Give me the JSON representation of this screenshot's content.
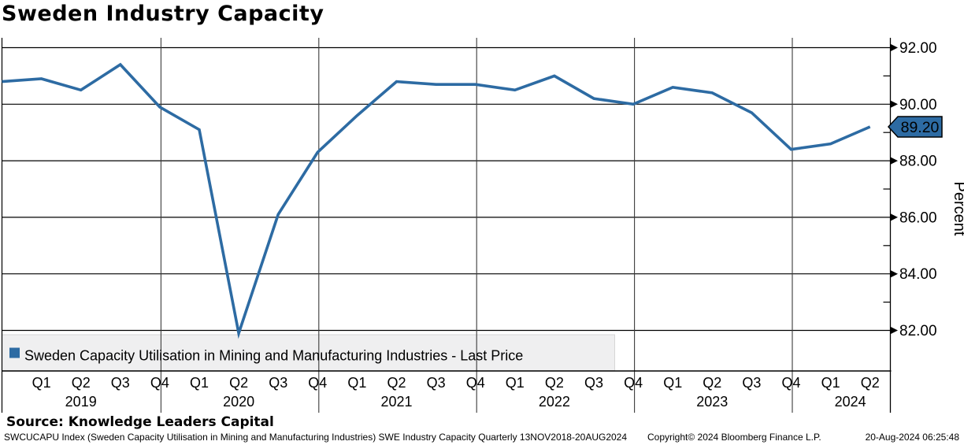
{
  "title": "Sweden Industry Capacity",
  "chart_data": {
    "type": "line",
    "x": [
      "2018-Q4",
      "2019-Q1",
      "2019-Q2",
      "2019-Q3",
      "2019-Q4",
      "2020-Q1",
      "2020-Q2",
      "2020-Q3",
      "2020-Q4",
      "2021-Q1",
      "2021-Q2",
      "2021-Q3",
      "2021-Q4",
      "2022-Q1",
      "2022-Q2",
      "2022-Q3",
      "2022-Q4",
      "2023-Q1",
      "2023-Q2",
      "2023-Q3",
      "2023-Q4",
      "2024-Q1",
      "2024-Q2"
    ],
    "series": [
      {
        "name": "Sweden Capacity Utilisation in Mining and Manufacturing Industries - Last Price",
        "color": "#2d6ba3",
        "values": [
          90.8,
          90.9,
          90.5,
          91.4,
          89.9,
          89.1,
          81.9,
          86.1,
          88.3,
          89.6,
          90.8,
          90.7,
          90.7,
          90.5,
          91.0,
          90.2,
          90.0,
          90.6,
          90.4,
          89.7,
          88.4,
          88.6,
          89.2
        ]
      }
    ],
    "title": "Sweden Industry Capacity",
    "xlabel": "",
    "ylabel": "Percent",
    "ylim": [
      80.6,
      92.4
    ],
    "yticks_major": [
      82,
      84,
      86,
      88,
      90,
      92
    ],
    "yticks_minor": [
      83,
      85,
      87,
      89,
      91
    ],
    "ytick_decimals": 2,
    "grid": true,
    "legend_position": "bottom-left",
    "last_price": 89.2,
    "last_price_label": "89.20",
    "x_axis_years": [
      {
        "label": "2019",
        "quarters": [
          "Q1",
          "Q2",
          "Q3",
          "Q4"
        ]
      },
      {
        "label": "2020",
        "quarters": [
          "Q1",
          "Q2",
          "Q3",
          "Q4"
        ]
      },
      {
        "label": "2021",
        "quarters": [
          "Q1",
          "Q2",
          "Q3",
          "Q4"
        ]
      },
      {
        "label": "2022",
        "quarters": [
          "Q1",
          "Q2",
          "Q3",
          "Q4"
        ]
      },
      {
        "label": "2023",
        "quarters": [
          "Q1",
          "Q2",
          "Q3",
          "Q4"
        ]
      },
      {
        "label": "2024",
        "quarters": [
          "Q1",
          "Q2"
        ]
      }
    ]
  },
  "legend": {
    "label": "Sweden Capacity Utilisation in Mining and Manufacturing Industries - Last Price",
    "marker_color": "#2d6ba3"
  },
  "price_tag": {
    "value": "89.20",
    "fill": "#2d6ba3",
    "text_color": "#ffffff"
  },
  "footer": {
    "source": "Source: Knowledge Leaders Capital",
    "description": "SWCUCAPU Index (Sweden Capacity Utilisation in Mining and Manufacturing Industries) SWE Industry Capacity  Quarterly 13NOV2018-20AUG2024",
    "copyright": "Copyright© 2024 Bloomberg Finance L.P.",
    "timestamp": "20-Aug-2024 06:25:48"
  }
}
